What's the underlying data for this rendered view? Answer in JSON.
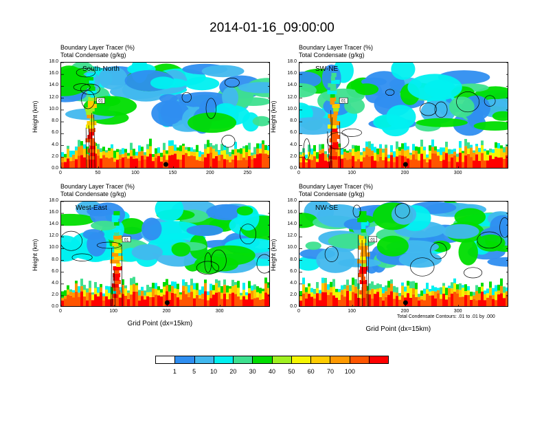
{
  "title": "2014-01-16_09:00:00",
  "chart_data": {
    "type": "heatmap",
    "colorbar": {
      "levels": [
        "1",
        "5",
        "10",
        "20",
        "30",
        "40",
        "50",
        "60",
        "70",
        "100"
      ],
      "colors": [
        "#ffffff",
        "#2f8ef0",
        "#41b8ee",
        "#00f0f0",
        "#3ee08f",
        "#00dd00",
        "#a0f020",
        "#f5f500",
        "#ffcc00",
        "#ff9900",
        "#ff5500",
        "#ff0000"
      ]
    },
    "contour_note": "Total Condensate Contours: .01 to .01 by .000",
    "contour_labels": [
      "01"
    ],
    "panels": [
      {
        "name": "South-North",
        "subtitle1": "Boundary Layer Tracer   (%)",
        "subtitle2": "Total Condensate   (g/kg)",
        "xlim": [
          0,
          280
        ],
        "xticks": [
          "0",
          "50",
          "100",
          "150",
          "200",
          "250"
        ],
        "ylim": [
          0,
          18
        ],
        "yticks": [
          "0.0",
          "2.0",
          "4.0",
          "6.0",
          "8.0",
          "10.0",
          "12.0",
          "14.0",
          "16.0",
          "18.0"
        ],
        "ylabel": "Height (km)",
        "xlabel": "",
        "marker_x": 140
      },
      {
        "name": "SW-NE",
        "subtitle1": "Boundary Layer Tracer   (%)",
        "subtitle2": "Total Condensate   (g/kg)",
        "xlim": [
          0,
          395
        ],
        "xticks": [
          "0",
          "100",
          "200",
          "300"
        ],
        "ylim": [
          0,
          18
        ],
        "yticks": [
          "0.0",
          "2.0",
          "4.0",
          "6.0",
          "8.0",
          "10.0",
          "12.0",
          "14.0",
          "16.0",
          "18.0"
        ],
        "ylabel": "Height (km)",
        "xlabel": "",
        "marker_x": 200
      },
      {
        "name": "West-East",
        "subtitle1": "Boundary Layer Tracer   (%)",
        "subtitle2": "Total Condensate   (g/kg)",
        "xlim": [
          0,
          395
        ],
        "xticks": [
          "0",
          "100",
          "200",
          "300"
        ],
        "ylim": [
          0,
          18
        ],
        "yticks": [
          "0.0",
          "2.0",
          "4.0",
          "6.0",
          "8.0",
          "10.0",
          "12.0",
          "14.0",
          "16.0",
          "18.0"
        ],
        "ylabel": "Height (km)",
        "xlabel": "Grid Point (dx=15km)",
        "marker_x": 200
      },
      {
        "name": "NW-SE",
        "subtitle1": "Boundary Layer Tracer   (%)",
        "subtitle2": "Total Condensate   (g/kg)",
        "xlim": [
          0,
          395
        ],
        "xticks": [
          "0",
          "100",
          "200",
          "300"
        ],
        "ylim": [
          0,
          18
        ],
        "yticks": [
          "0.0",
          "2.0",
          "4.0",
          "6.0",
          "8.0",
          "10.0",
          "12.0",
          "14.0",
          "16.0",
          "18.0"
        ],
        "ylabel": "Height (km)",
        "xlabel": "Grid Point (dx=15km)",
        "marker_x": 200
      }
    ]
  }
}
